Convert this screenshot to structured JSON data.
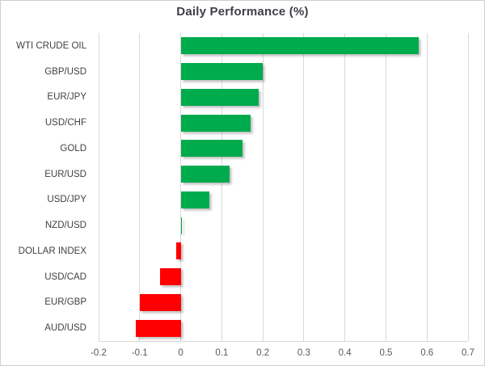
{
  "chart_data": {
    "type": "bar",
    "orientation": "horizontal",
    "title": "Daily Performance (%)",
    "categories": [
      "WTI CRUDE OIL",
      "GBP/USD",
      "EUR/JPY",
      "USD/CHF",
      "GOLD",
      "EUR/USD",
      "USD/JPY",
      "NZD/USD",
      "DOLLAR INDEX",
      "USD/CAD",
      "EUR/GBP",
      "AUD/USD"
    ],
    "values": [
      0.58,
      0.2,
      0.19,
      0.17,
      0.15,
      0.12,
      0.07,
      0.0,
      -0.01,
      -0.05,
      -0.1,
      -0.11
    ],
    "xlim": [
      -0.2,
      0.7
    ],
    "xticks": [
      -0.2,
      -0.1,
      0,
      0.1,
      0.2,
      0.3,
      0.4,
      0.5,
      0.6,
      0.7
    ],
    "xtick_labels": [
      "-0.2",
      "-0.1",
      "0",
      "0.1",
      "0.2",
      "0.3",
      "0.4",
      "0.5",
      "0.6",
      "0.7"
    ],
    "grid": "vertical",
    "legend": "none",
    "colors": {
      "positive": "#00AB4E",
      "negative": "#FE0000",
      "gridline": "#D9D9D9",
      "title_text": "#3F3F46",
      "category_text": "#404040",
      "tick_text": "#595959",
      "background": "#FFFFFF",
      "frame_border": "#CFCFCF"
    }
  }
}
